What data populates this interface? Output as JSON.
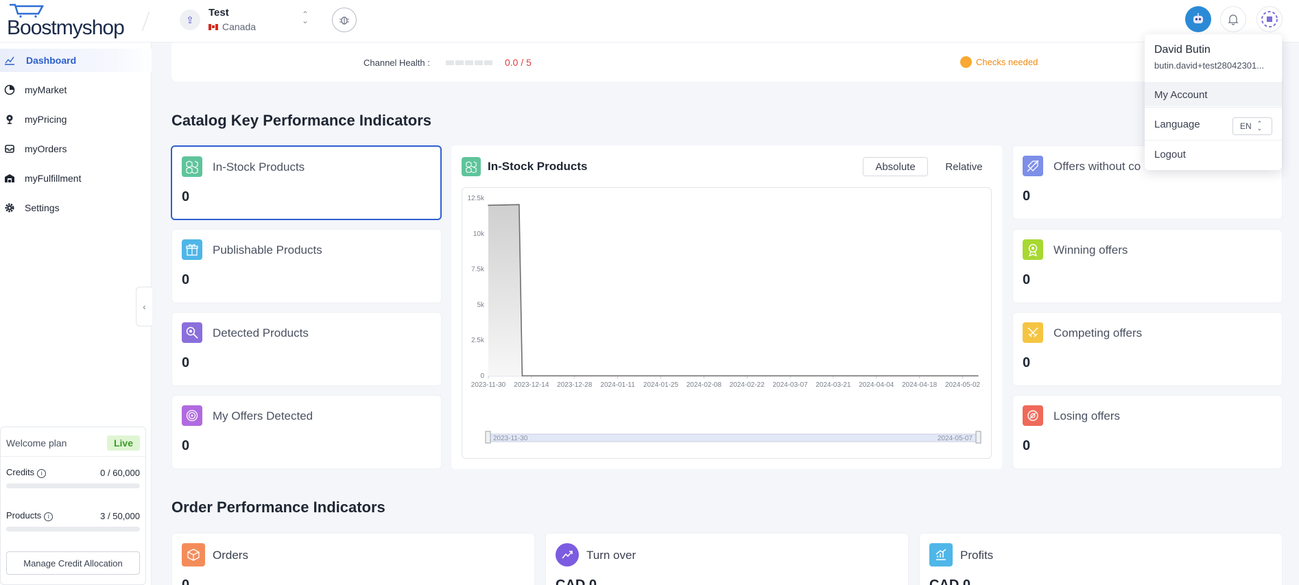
{
  "app": {
    "logo_text": "Boostmyshop"
  },
  "shop": {
    "name": "Test",
    "country": "Canada"
  },
  "sidebar": {
    "items": [
      {
        "label": "Dashboard",
        "icon": "chart-line-icon",
        "active": true
      },
      {
        "label": "myMarket",
        "icon": "pie-chart-icon",
        "active": false
      },
      {
        "label": "myPricing",
        "icon": "pricing-pin-icon",
        "active": false
      },
      {
        "label": "myOrders",
        "icon": "inbox-icon",
        "active": false
      },
      {
        "label": "myFulfillment",
        "icon": "warehouse-icon",
        "active": false
      },
      {
        "label": "Settings",
        "icon": "gear-icon",
        "active": false
      }
    ]
  },
  "plan": {
    "title": "Welcome plan",
    "status": "Live",
    "credits_label": "Credits",
    "credits_value": "0 / 60,000",
    "credits_used": 0,
    "credits_total": 60000,
    "products_label": "Products",
    "products_value": "3 / 50,000",
    "products_used": 3,
    "products_total": 50000,
    "manage_button": "Manage Credit Allocation"
  },
  "health": {
    "label": "Channel Health :",
    "score": "0.0 / 5",
    "checks": "Checks needed"
  },
  "catalog_section": {
    "title": "Catalog Key Performance Indicators",
    "left_kpis": [
      {
        "label": "In-Stock Products",
        "value": "0",
        "icon": "boxes-icon",
        "color": "#5fc49b"
      },
      {
        "label": "Publishable Products",
        "value": "0",
        "icon": "gift-icon",
        "color": "#4fb6e8"
      },
      {
        "label": "Detected Products",
        "value": "0",
        "icon": "magnifier-icon",
        "color": "#8a6fdc"
      },
      {
        "label": "My Offers Detected",
        "value": "0",
        "icon": "target-icon",
        "color": "#b06be0"
      }
    ],
    "right_kpis": [
      {
        "label": "Offers without co",
        "value": "0",
        "icon": "tag-off-icon",
        "color": "#7e8fe8"
      },
      {
        "label": "Winning offers",
        "value": "0",
        "icon": "medal-icon",
        "color": "#a8d832"
      },
      {
        "label": "Competing offers",
        "value": "0",
        "icon": "swords-icon",
        "color": "#f5c542"
      },
      {
        "label": "Losing offers",
        "value": "0",
        "icon": "broken-medal-icon",
        "color": "#ef6a5a"
      }
    ],
    "chart_panel": {
      "title": "In-Stock Products",
      "toggle_absolute": "Absolute",
      "toggle_relative": "Relative",
      "range_start": "2023-11-30",
      "range_end": "2024-05-07"
    }
  },
  "chart_data": {
    "type": "area",
    "title": "",
    "xlabel": "",
    "ylabel": "",
    "y_ticks": [
      "0",
      "2.5k",
      "5k",
      "7.5k",
      "10k",
      "12.5k"
    ],
    "ylim": [
      0,
      12500
    ],
    "x_ticks": [
      "2023-11-30",
      "2023-12-14",
      "2023-12-28",
      "2024-01-11",
      "2024-01-25",
      "2024-02-08",
      "2024-02-22",
      "2024-03-07",
      "2024-03-21",
      "2024-04-04",
      "2024-04-18",
      "2024-05-02"
    ],
    "series": [
      {
        "x": [
          "2023-11-30",
          "2023-12-10",
          "2023-12-11",
          "2024-05-07"
        ],
        "values": [
          12000,
          12050,
          0,
          0
        ]
      }
    ]
  },
  "order_section": {
    "title": "Order Performance Indicators",
    "kpis": [
      {
        "label": "Orders",
        "value": "0",
        "icon": "package-icon",
        "color": "#f48c5a"
      },
      {
        "label": "Turn over",
        "value": "CAD 0",
        "icon": "trend-icon",
        "color": "#7c5ce0"
      },
      {
        "label": "Profits",
        "value": "CAD 0",
        "icon": "growth-icon",
        "color": "#4fb6e8"
      }
    ]
  },
  "user_menu": {
    "name": "David Butin",
    "email": "butin.david+test28042301...",
    "my_account": "My Account",
    "language_label": "Language",
    "language_value": "EN",
    "logout": "Logout"
  }
}
